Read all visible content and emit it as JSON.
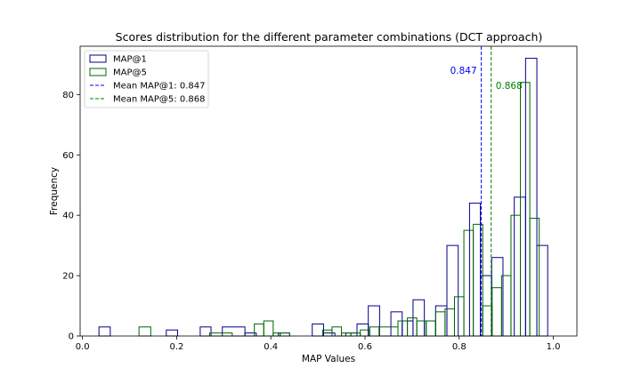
{
  "chart_data": {
    "type": "histogram",
    "title": "Scores distribution for the different parameter combinations (DCT approach)",
    "xlabel": "MAP Values",
    "ylabel": "Frequency",
    "xlim": [
      -0.005,
      1.05
    ],
    "ylim": [
      0,
      96
    ],
    "xticks": [
      0.0,
      0.2,
      0.4,
      0.6,
      0.8,
      1.0
    ],
    "xtick_labels": [
      "0.0",
      "0.2",
      "0.4",
      "0.6",
      "0.8",
      "1.0"
    ],
    "yticks": [
      0,
      20,
      40,
      60,
      80
    ],
    "ytick_labels": [
      "0",
      "20",
      "40",
      "60",
      "80"
    ],
    "grid": false,
    "legend_position": "top-left",
    "legend": [
      {
        "label": "MAP@1",
        "kind": "patch",
        "color": "#00008b"
      },
      {
        "label": "MAP@5",
        "kind": "patch",
        "color": "#006400"
      },
      {
        "label": "Mean MAP@1: 0.847",
        "kind": "dashed",
        "color": "#0000ff"
      },
      {
        "label": "Mean MAP@5: 0.868",
        "kind": "dashed",
        "color": "#008000"
      }
    ],
    "series": [
      {
        "name": "MAP@1",
        "color": "#00008b",
        "bins": [
          {
            "x0": 0.035,
            "x1": 0.059,
            "count": 3
          },
          {
            "x0": 0.059,
            "x1": 0.178,
            "count": 0
          },
          {
            "x0": 0.178,
            "x1": 0.202,
            "count": 2
          },
          {
            "x0": 0.202,
            "x1": 0.25,
            "count": 0
          },
          {
            "x0": 0.25,
            "x1": 0.273,
            "count": 3
          },
          {
            "x0": 0.273,
            "x1": 0.297,
            "count": 0
          },
          {
            "x0": 0.297,
            "x1": 0.345,
            "count": 3
          },
          {
            "x0": 0.345,
            "x1": 0.369,
            "count": 1
          },
          {
            "x0": 0.369,
            "x1": 0.416,
            "count": 0
          },
          {
            "x0": 0.416,
            "x1": 0.44,
            "count": 1
          },
          {
            "x0": 0.44,
            "x1": 0.488,
            "count": 0
          },
          {
            "x0": 0.488,
            "x1": 0.512,
            "count": 4
          },
          {
            "x0": 0.512,
            "x1": 0.536,
            "count": 1
          },
          {
            "x0": 0.536,
            "x1": 0.559,
            "count": 0
          },
          {
            "x0": 0.559,
            "x1": 0.583,
            "count": 1
          },
          {
            "x0": 0.583,
            "x1": 0.607,
            "count": 4
          },
          {
            "x0": 0.607,
            "x1": 0.631,
            "count": 10
          },
          {
            "x0": 0.631,
            "x1": 0.655,
            "count": 0
          },
          {
            "x0": 0.655,
            "x1": 0.679,
            "count": 8
          },
          {
            "x0": 0.679,
            "x1": 0.702,
            "count": 5
          },
          {
            "x0": 0.702,
            "x1": 0.726,
            "count": 12
          },
          {
            "x0": 0.726,
            "x1": 0.75,
            "count": 5
          },
          {
            "x0": 0.75,
            "x1": 0.774,
            "count": 10
          },
          {
            "x0": 0.774,
            "x1": 0.798,
            "count": 30
          },
          {
            "x0": 0.798,
            "x1": 0.822,
            "count": 0
          },
          {
            "x0": 0.822,
            "x1": 0.845,
            "count": 44
          },
          {
            "x0": 0.845,
            "x1": 0.869,
            "count": 20
          },
          {
            "x0": 0.869,
            "x1": 0.893,
            "count": 26
          },
          {
            "x0": 0.893,
            "x1": 0.917,
            "count": 0
          },
          {
            "x0": 0.917,
            "x1": 0.941,
            "count": 46
          },
          {
            "x0": 0.941,
            "x1": 0.965,
            "count": 92
          },
          {
            "x0": 0.965,
            "x1": 0.988,
            "count": 30
          }
        ]
      },
      {
        "name": "MAP@5",
        "color": "#006400",
        "bins": [
          {
            "x0": 0.12,
            "x1": 0.145,
            "count": 3
          },
          {
            "x0": 0.145,
            "x1": 0.27,
            "count": 0
          },
          {
            "x0": 0.27,
            "x1": 0.318,
            "count": 1
          },
          {
            "x0": 0.318,
            "x1": 0.365,
            "count": 0
          },
          {
            "x0": 0.365,
            "x1": 0.385,
            "count": 4
          },
          {
            "x0": 0.385,
            "x1": 0.405,
            "count": 5
          },
          {
            "x0": 0.405,
            "x1": 0.42,
            "count": 1
          },
          {
            "x0": 0.42,
            "x1": 0.44,
            "count": 1
          },
          {
            "x0": 0.44,
            "x1": 0.51,
            "count": 0
          },
          {
            "x0": 0.51,
            "x1": 0.53,
            "count": 2
          },
          {
            "x0": 0.53,
            "x1": 0.55,
            "count": 3
          },
          {
            "x0": 0.55,
            "x1": 0.57,
            "count": 1
          },
          {
            "x0": 0.57,
            "x1": 0.59,
            "count": 1
          },
          {
            "x0": 0.59,
            "x1": 0.61,
            "count": 2
          },
          {
            "x0": 0.61,
            "x1": 0.63,
            "count": 3
          },
          {
            "x0": 0.63,
            "x1": 0.67,
            "count": 3
          },
          {
            "x0": 0.67,
            "x1": 0.69,
            "count": 5
          },
          {
            "x0": 0.69,
            "x1": 0.71,
            "count": 6
          },
          {
            "x0": 0.71,
            "x1": 0.73,
            "count": 5
          },
          {
            "x0": 0.73,
            "x1": 0.75,
            "count": 5
          },
          {
            "x0": 0.75,
            "x1": 0.77,
            "count": 8
          },
          {
            "x0": 0.77,
            "x1": 0.79,
            "count": 9
          },
          {
            "x0": 0.79,
            "x1": 0.81,
            "count": 13
          },
          {
            "x0": 0.81,
            "x1": 0.83,
            "count": 35
          },
          {
            "x0": 0.83,
            "x1": 0.85,
            "count": 37
          },
          {
            "x0": 0.85,
            "x1": 0.87,
            "count": 10
          },
          {
            "x0": 0.87,
            "x1": 0.89,
            "count": 16
          },
          {
            "x0": 0.89,
            "x1": 0.91,
            "count": 20
          },
          {
            "x0": 0.91,
            "x1": 0.93,
            "count": 40
          },
          {
            "x0": 0.93,
            "x1": 0.95,
            "count": 84
          },
          {
            "x0": 0.95,
            "x1": 0.97,
            "count": 39
          },
          {
            "x0": 0.97,
            "x1": 1.0,
            "count": 0
          }
        ]
      }
    ],
    "reference_lines": [
      {
        "name": "Mean MAP@1",
        "x": 0.847,
        "label": "0.847",
        "color": "#0000ff",
        "label_side": "left",
        "label_y": 88
      },
      {
        "name": "Mean MAP@5",
        "x": 0.868,
        "label": "0.868",
        "color": "#008000",
        "label_side": "right",
        "label_y": 83
      }
    ]
  }
}
